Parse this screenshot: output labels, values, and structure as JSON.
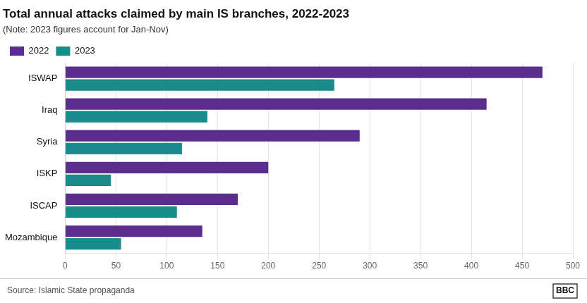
{
  "chart_data": {
    "type": "bar",
    "orientation": "horizontal",
    "title": "Total annual attacks claimed by main IS branches, 2022-2023",
    "subtitle": "(Note: 2023 figures account for Jan-Nov)",
    "source": "Source: Islamic State propaganda",
    "logo": "BBC",
    "categories": [
      "ISWAP",
      "Iraq",
      "Syria",
      "ISKP",
      "ISCAP",
      "Mozambique"
    ],
    "series": [
      {
        "name": "2022",
        "color": "#5b2d8e",
        "values": [
          470,
          415,
          290,
          200,
          170,
          135
        ]
      },
      {
        "name": "2023",
        "color": "#1a8a8a",
        "values": [
          265,
          140,
          115,
          45,
          110,
          55
        ]
      }
    ],
    "xlim": [
      0,
      500
    ],
    "xticks": [
      0,
      50,
      100,
      150,
      200,
      250,
      300,
      350,
      400,
      450,
      500
    ],
    "grid": true,
    "legend": "top-left"
  }
}
